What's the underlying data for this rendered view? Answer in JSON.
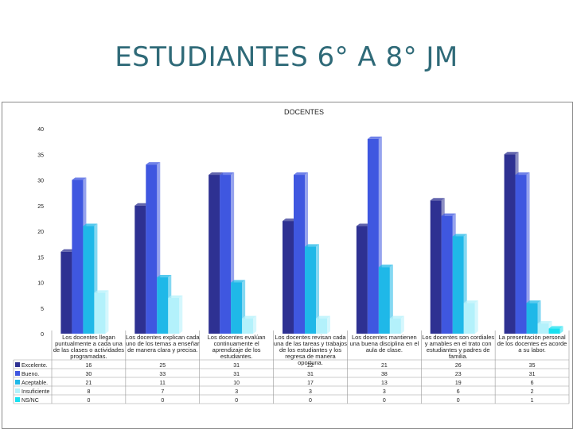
{
  "slide": {
    "title": "ESTUDIANTES 6° A 8° JM"
  },
  "chart_data": {
    "type": "bar",
    "title": "DOCENTES",
    "xlabel": "",
    "ylabel": "",
    "ylim": [
      0,
      40
    ],
    "yticks": [
      0,
      5,
      10,
      15,
      20,
      25,
      30,
      35,
      40
    ],
    "grid": false,
    "legend_position": "table-left",
    "categories": [
      "Los docentes llegan puntualmente a cada una de las clases o actividades programadas.",
      "Los docentes explican cada uno de los temas a enseñar de manera clara y precisa.",
      "Los docentes evalúan continuamente el aprendizaje de los estudiantes.",
      "Los docentes revisan cada una de las tareas y trabajos de los estudiantes y los regresa de manera oportuna.",
      "Los docentes mantienen una buena disciplina en el aula de clase.",
      "Los docentes son cordiales y amables en el trato con estudiantes y padres de familia.",
      "La presentación personal de los docentes es acorde a su labor."
    ],
    "series": [
      {
        "name": "Excelente.",
        "color": "#2e3192",
        "values": [
          16,
          25,
          31,
          22,
          21,
          26,
          35
        ]
      },
      {
        "name": "Bueno.",
        "color": "#3f57e0",
        "values": [
          30,
          33,
          31,
          31,
          38,
          23,
          31
        ]
      },
      {
        "name": "Aceptable.",
        "color": "#1fb8e8",
        "values": [
          21,
          11,
          10,
          17,
          13,
          19,
          6
        ]
      },
      {
        "name": "Insuficiente",
        "color": "#b3f1fb",
        "values": [
          8,
          7,
          3,
          3,
          3,
          6,
          2
        ]
      },
      {
        "name": "NS/NC",
        "color": "#19e0f0",
        "values": [
          0,
          0,
          0,
          0,
          0,
          0,
          1
        ]
      }
    ]
  }
}
